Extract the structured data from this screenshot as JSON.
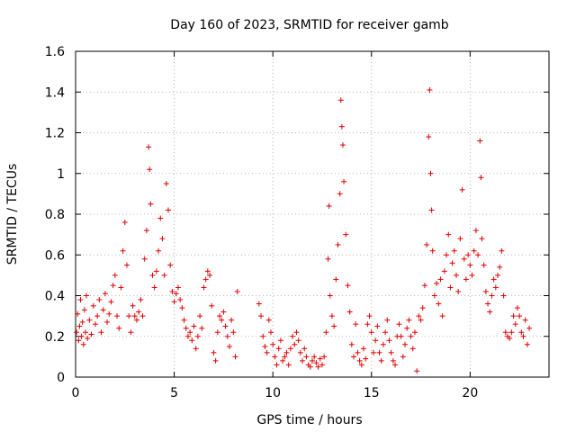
{
  "chart_data": {
    "type": "scatter",
    "title": "Day 160 of 2023, SRMTID for receiver gamb",
    "xlabel": "GPS time / hours",
    "ylabel": "SRMTID / TECUs",
    "xlim": [
      0,
      24
    ],
    "ylim": [
      0,
      1.6
    ],
    "xticks": [
      0,
      5,
      10,
      15,
      20
    ],
    "xtick_labels": [
      "0",
      "5",
      "10",
      "15",
      "20"
    ],
    "yticks": [
      0,
      0.2,
      0.4,
      0.6,
      0.8,
      1,
      1.2,
      1.4,
      1.6
    ],
    "ytick_labels": [
      "0",
      "0.2",
      "0.4",
      "0.6",
      "0.8",
      "1",
      "1.2",
      "1.4",
      "1.6"
    ],
    "grid": true,
    "marker": "plus",
    "color": "#e00000",
    "series": [
      {
        "name": "SRMTID",
        "points": [
          [
            0.05,
            0.22
          ],
          [
            0.1,
            0.31
          ],
          [
            0.15,
            0.18
          ],
          [
            0.2,
            0.25
          ],
          [
            0.25,
            0.38
          ],
          [
            0.3,
            0.2
          ],
          [
            0.35,
            0.27
          ],
          [
            0.4,
            0.16
          ],
          [
            0.45,
            0.33
          ],
          [
            0.5,
            0.22
          ],
          [
            0.55,
            0.4
          ],
          [
            0.6,
            0.19
          ],
          [
            0.7,
            0.28
          ],
          [
            0.8,
            0.21
          ],
          [
            0.9,
            0.35
          ],
          [
            1.0,
            0.26
          ],
          [
            1.1,
            0.3
          ],
          [
            1.2,
            0.38
          ],
          [
            1.3,
            0.22
          ],
          [
            1.4,
            0.33
          ],
          [
            1.5,
            0.41
          ],
          [
            1.6,
            0.27
          ],
          [
            1.7,
            0.31
          ],
          [
            1.8,
            0.37
          ],
          [
            1.9,
            0.45
          ],
          [
            2.0,
            0.5
          ],
          [
            2.1,
            0.3
          ],
          [
            2.2,
            0.24
          ],
          [
            2.3,
            0.44
          ],
          [
            2.4,
            0.62
          ],
          [
            2.5,
            0.76
          ],
          [
            2.6,
            0.55
          ],
          [
            2.7,
            0.3
          ],
          [
            2.8,
            0.22
          ],
          [
            2.9,
            0.35
          ],
          [
            3.0,
            0.3
          ],
          [
            3.1,
            0.28
          ],
          [
            3.2,
            0.32
          ],
          [
            3.3,
            0.38
          ],
          [
            3.4,
            0.3
          ],
          [
            3.5,
            0.58
          ],
          [
            3.6,
            0.72
          ],
          [
            3.7,
            1.13
          ],
          [
            3.75,
            1.02
          ],
          [
            3.8,
            0.85
          ],
          [
            3.9,
            0.5
          ],
          [
            4.0,
            0.44
          ],
          [
            4.1,
            0.52
          ],
          [
            4.2,
            0.62
          ],
          [
            4.3,
            0.78
          ],
          [
            4.4,
            0.68
          ],
          [
            4.5,
            0.5
          ],
          [
            4.6,
            0.95
          ],
          [
            4.7,
            0.82
          ],
          [
            4.8,
            0.55
          ],
          [
            4.9,
            0.42
          ],
          [
            5.0,
            0.37
          ],
          [
            5.1,
            0.41
          ],
          [
            5.2,
            0.44
          ],
          [
            5.3,
            0.38
          ],
          [
            5.4,
            0.34
          ],
          [
            5.5,
            0.28
          ],
          [
            5.6,
            0.24
          ],
          [
            5.7,
            0.2
          ],
          [
            5.8,
            0.22
          ],
          [
            5.9,
            0.18
          ],
          [
            6.0,
            0.25
          ],
          [
            6.1,
            0.14
          ],
          [
            6.2,
            0.2
          ],
          [
            6.3,
            0.3
          ],
          [
            6.4,
            0.24
          ],
          [
            6.5,
            0.44
          ],
          [
            6.6,
            0.48
          ],
          [
            6.7,
            0.52
          ],
          [
            6.8,
            0.5
          ],
          [
            6.9,
            0.35
          ],
          [
            7.0,
            0.12
          ],
          [
            7.1,
            0.08
          ],
          [
            7.2,
            0.22
          ],
          [
            7.3,
            0.3
          ],
          [
            7.4,
            0.28
          ],
          [
            7.5,
            0.32
          ],
          [
            7.6,
            0.25
          ],
          [
            7.7,
            0.2
          ],
          [
            7.8,
            0.15
          ],
          [
            7.9,
            0.28
          ],
          [
            8.0,
            0.22
          ],
          [
            8.1,
            0.1
          ],
          [
            8.2,
            0.42
          ],
          [
            9.3,
            0.36
          ],
          [
            9.4,
            0.3
          ],
          [
            9.5,
            0.2
          ],
          [
            9.6,
            0.15
          ],
          [
            9.7,
            0.12
          ],
          [
            9.8,
            0.28
          ],
          [
            9.9,
            0.22
          ],
          [
            10.0,
            0.16
          ],
          [
            10.1,
            0.1
          ],
          [
            10.2,
            0.06
          ],
          [
            10.3,
            0.14
          ],
          [
            10.4,
            0.18
          ],
          [
            10.5,
            0.08
          ],
          [
            10.6,
            0.1
          ],
          [
            10.7,
            0.12
          ],
          [
            10.8,
            0.06
          ],
          [
            10.9,
            0.14
          ],
          [
            11.0,
            0.2
          ],
          [
            11.1,
            0.16
          ],
          [
            11.2,
            0.22
          ],
          [
            11.3,
            0.18
          ],
          [
            11.4,
            0.12
          ],
          [
            11.5,
            0.08
          ],
          [
            11.6,
            0.14
          ],
          [
            11.7,
            0.1
          ],
          [
            11.8,
            0.06
          ],
          [
            11.9,
            0.05
          ],
          [
            12.0,
            0.08
          ],
          [
            12.1,
            0.1
          ],
          [
            12.2,
            0.07
          ],
          [
            12.3,
            0.05
          ],
          [
            12.4,
            0.09
          ],
          [
            12.5,
            0.06
          ],
          [
            12.6,
            0.1
          ],
          [
            12.7,
            0.22
          ],
          [
            12.8,
            0.58
          ],
          [
            12.85,
            0.84
          ],
          [
            12.9,
            0.4
          ],
          [
            13.0,
            0.3
          ],
          [
            13.1,
            0.25
          ],
          [
            13.2,
            0.48
          ],
          [
            13.3,
            0.65
          ],
          [
            13.4,
            0.9
          ],
          [
            13.45,
            1.36
          ],
          [
            13.5,
            1.23
          ],
          [
            13.55,
            1.14
          ],
          [
            13.6,
            0.96
          ],
          [
            13.7,
            0.7
          ],
          [
            13.8,
            0.45
          ],
          [
            13.9,
            0.32
          ],
          [
            14.0,
            0.16
          ],
          [
            14.1,
            0.1
          ],
          [
            14.2,
            0.26
          ],
          [
            14.3,
            0.12
          ],
          [
            14.4,
            0.08
          ],
          [
            14.5,
            0.06
          ],
          [
            14.6,
            0.14
          ],
          [
            14.7,
            0.09
          ],
          [
            14.8,
            0.26
          ],
          [
            14.9,
            0.3
          ],
          [
            15.0,
            0.22
          ],
          [
            15.1,
            0.12
          ],
          [
            15.2,
            0.18
          ],
          [
            15.3,
            0.25
          ],
          [
            15.4,
            0.12
          ],
          [
            15.5,
            0.08
          ],
          [
            15.6,
            0.16
          ],
          [
            15.7,
            0.22
          ],
          [
            15.8,
            0.28
          ],
          [
            15.9,
            0.18
          ],
          [
            16.0,
            0.12
          ],
          [
            16.1,
            0.08
          ],
          [
            16.2,
            0.06
          ],
          [
            16.3,
            0.2
          ],
          [
            16.4,
            0.26
          ],
          [
            16.5,
            0.2
          ],
          [
            16.6,
            0.1
          ],
          [
            16.7,
            0.16
          ],
          [
            16.8,
            0.24
          ],
          [
            16.9,
            0.28
          ],
          [
            17.0,
            0.2
          ],
          [
            17.1,
            0.14
          ],
          [
            17.2,
            0.22
          ],
          [
            17.3,
            0.03
          ],
          [
            17.4,
            0.3
          ],
          [
            17.5,
            0.28
          ],
          [
            17.6,
            0.34
          ],
          [
            17.7,
            0.45
          ],
          [
            17.8,
            0.65
          ],
          [
            17.9,
            1.18
          ],
          [
            17.95,
            1.41
          ],
          [
            18.0,
            1.0
          ],
          [
            18.05,
            0.82
          ],
          [
            18.1,
            0.62
          ],
          [
            18.2,
            0.4
          ],
          [
            18.3,
            0.46
          ],
          [
            18.4,
            0.36
          ],
          [
            18.5,
            0.48
          ],
          [
            18.6,
            0.3
          ],
          [
            18.7,
            0.52
          ],
          [
            18.8,
            0.6
          ],
          [
            18.9,
            0.7
          ],
          [
            19.0,
            0.44
          ],
          [
            19.1,
            0.56
          ],
          [
            19.2,
            0.62
          ],
          [
            19.3,
            0.5
          ],
          [
            19.4,
            0.42
          ],
          [
            19.5,
            0.68
          ],
          [
            19.6,
            0.92
          ],
          [
            19.7,
            0.58
          ],
          [
            19.8,
            0.48
          ],
          [
            19.9,
            0.6
          ],
          [
            20.0,
            0.55
          ],
          [
            20.1,
            0.5
          ],
          [
            20.2,
            0.62
          ],
          [
            20.3,
            0.72
          ],
          [
            20.4,
            0.6
          ],
          [
            20.5,
            1.16
          ],
          [
            20.55,
            0.98
          ],
          [
            20.6,
            0.68
          ],
          [
            20.7,
            0.55
          ],
          [
            20.8,
            0.42
          ],
          [
            20.9,
            0.36
          ],
          [
            21.0,
            0.32
          ],
          [
            21.1,
            0.4
          ],
          [
            21.2,
            0.48
          ],
          [
            21.3,
            0.44
          ],
          [
            21.4,
            0.5
          ],
          [
            21.5,
            0.54
          ],
          [
            21.6,
            0.62
          ],
          [
            21.7,
            0.4
          ],
          [
            21.8,
            0.22
          ],
          [
            21.9,
            0.2
          ],
          [
            22.0,
            0.19
          ],
          [
            22.1,
            0.22
          ],
          [
            22.2,
            0.3
          ],
          [
            22.3,
            0.26
          ],
          [
            22.4,
            0.34
          ],
          [
            22.5,
            0.3
          ],
          [
            22.6,
            0.22
          ],
          [
            22.7,
            0.2
          ],
          [
            22.8,
            0.28
          ],
          [
            22.9,
            0.16
          ],
          [
            23.0,
            0.24
          ]
        ]
      }
    ]
  }
}
